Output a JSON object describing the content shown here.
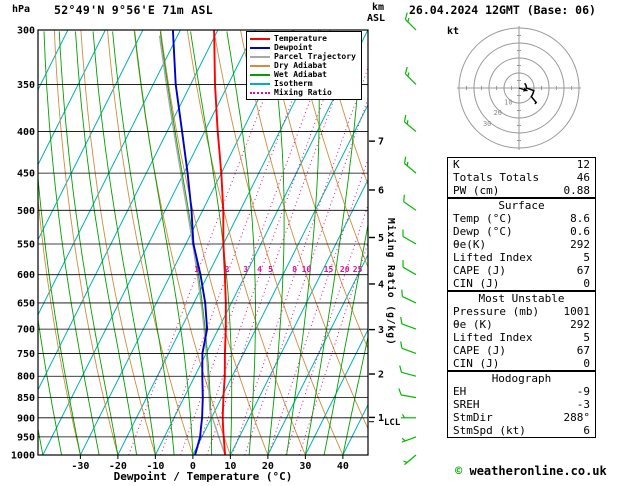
{
  "header": {
    "pressure_unit": "hPa",
    "station": "52°49'N 9°56'E 71m ASL",
    "datetime": "26.04.2024 12GMT (Base: 06)",
    "altitude_unit": "km",
    "altitude_ref": "ASL"
  },
  "footer": {
    "copyright_symbol": "©",
    "copyright_text": "weatheronline.co.uk"
  },
  "colors": {
    "temperature": "#ff0000",
    "dewpoint": "#0000cd",
    "parcel": "#a8a8a8",
    "dry_adiabat": "#cf8d3e",
    "wet_adiabat": "#00a000",
    "isotherm": "#00b2b2",
    "mixing_ratio": "#dd0f9d",
    "wind_barb": "#00bb00",
    "axis": "#000000",
    "hodograph_grid": "#999999"
  },
  "legend": [
    {
      "label": "Temperature",
      "color_key": "temperature",
      "style": "solid"
    },
    {
      "label": "Dewpoint",
      "color_key": "dewpoint",
      "style": "solid"
    },
    {
      "label": "Parcel Trajectory",
      "color_key": "parcel",
      "style": "solid"
    },
    {
      "label": "Dry Adiabat",
      "color_key": "dry_adiabat",
      "style": "solid"
    },
    {
      "label": "Wet Adiabat",
      "color_key": "wet_adiabat",
      "style": "solid"
    },
    {
      "label": "Isotherm",
      "color_key": "isotherm",
      "style": "solid"
    },
    {
      "label": "Mixing Ratio",
      "color_key": "mixing_ratio",
      "style": "dotted"
    }
  ],
  "axes": {
    "pressure_ticks": [
      300,
      350,
      400,
      450,
      500,
      550,
      600,
      650,
      700,
      750,
      800,
      850,
      900,
      950,
      1000
    ],
    "temp_ticks": [
      -30,
      -20,
      -10,
      0,
      10,
      20,
      30,
      40
    ],
    "x_label": "Dewpoint / Temperature (°C)",
    "mixing_ratio_axis_label": "Mixing Ratio (g/kg)",
    "km_ticks": [
      1,
      2,
      3,
      4,
      5,
      6,
      7
    ],
    "lcl_label": "LCL"
  },
  "chart_data": {
    "type": "skewt-logp",
    "title": "52°49'N 9°56'E 71m ASL",
    "valid": "26.04.2024 12GMT (Base: 06)",
    "pressure_axis_hPa": [
      300,
      1000
    ],
    "surface_temp_axis_C": [
      -41.3,
      46.7
    ],
    "mixing_ratio_lines_g_per_kg": [
      1,
      2,
      3,
      4,
      5,
      8,
      10,
      15,
      20,
      25
    ],
    "lcl_pressure_hPa": 910,
    "sounding": {
      "pressure_hPa": [
        1000,
        950,
        925,
        900,
        850,
        800,
        750,
        700,
        650,
        600,
        550,
        500,
        450,
        400,
        350,
        300
      ],
      "temperature_C": [
        8.6,
        5.8,
        4.4,
        3.0,
        0.5,
        -2.0,
        -5.0,
        -8.0,
        -11.5,
        -15.5,
        -20.0,
        -24.5,
        -30.0,
        -36.5,
        -43.5,
        -51.0
      ],
      "dewpoint_C": [
        0.6,
        -0.5,
        -1.5,
        -2.5,
        -5.0,
        -8.0,
        -11.0,
        -13.0,
        -17.0,
        -22.0,
        -28.0,
        -33.0,
        -39.0,
        -46.0,
        -54.0,
        -62.0
      ]
    },
    "parcel": {
      "surface_temp_C": 8.6,
      "surface_dewp_C": 0.6
    },
    "winds": [
      {
        "p": 1000,
        "dir": 230,
        "spd": 5
      },
      {
        "p": 950,
        "dir": 250,
        "spd": 5
      },
      {
        "p": 900,
        "dir": 270,
        "spd": 5
      },
      {
        "p": 850,
        "dir": 280,
        "spd": 10
      },
      {
        "p": 800,
        "dir": 285,
        "spd": 10
      },
      {
        "p": 750,
        "dir": 290,
        "spd": 10
      },
      {
        "p": 700,
        "dir": 290,
        "spd": 10
      },
      {
        "p": 650,
        "dir": 295,
        "spd": 10
      },
      {
        "p": 600,
        "dir": 300,
        "spd": 10
      },
      {
        "p": 550,
        "dir": 300,
        "spd": 10
      },
      {
        "p": 500,
        "dir": 305,
        "spd": 10
      },
      {
        "p": 450,
        "dir": 310,
        "spd": 15
      },
      {
        "p": 400,
        "dir": 310,
        "spd": 15
      },
      {
        "p": 350,
        "dir": 315,
        "spd": 15
      },
      {
        "p": 300,
        "dir": 315,
        "spd": 15
      }
    ]
  },
  "hodograph": {
    "unit_label": "kt",
    "rings_kt": [
      10,
      20,
      30,
      40
    ],
    "ring_labels": [
      10,
      20,
      30
    ],
    "storm_dir_deg": 288,
    "storm_speed_kt": 6
  },
  "tables": [
    {
      "title": "",
      "rows": [
        [
          "K",
          "12"
        ],
        [
          "Totals Totals",
          "46"
        ],
        [
          "PW (cm)",
          "0.88"
        ]
      ]
    },
    {
      "title": "Surface",
      "rows": [
        [
          "Temp (°C)",
          "8.6"
        ],
        [
          "Dewp (°C)",
          "0.6"
        ],
        [
          "θe(K)",
          "292"
        ],
        [
          "Lifted Index",
          "5"
        ],
        [
          "CAPE (J)",
          "67"
        ],
        [
          "CIN (J)",
          "0"
        ]
      ]
    },
    {
      "title": "Most Unstable",
      "rows": [
        [
          "Pressure (mb)",
          "1001"
        ],
        [
          "θe (K)",
          "292"
        ],
        [
          "Lifted Index",
          "5"
        ],
        [
          "CAPE (J)",
          "67"
        ],
        [
          "CIN (J)",
          "0"
        ]
      ]
    },
    {
      "title": "Hodograph",
      "rows": [
        [
          "EH",
          "-9"
        ],
        [
          "SREH",
          "-3"
        ],
        [
          "StmDir",
          "288°"
        ],
        [
          "StmSpd (kt)",
          "6"
        ]
      ]
    }
  ]
}
